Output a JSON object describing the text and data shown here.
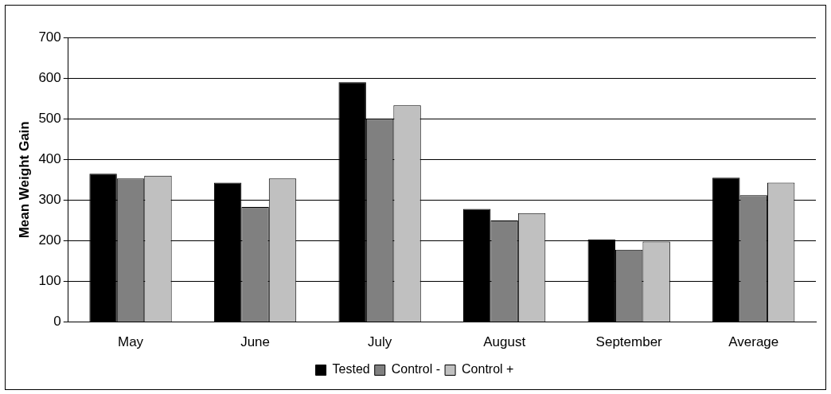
{
  "chart_data": {
    "type": "bar",
    "ylabel": "Mean Weight Gain",
    "categories": [
      "May",
      "June",
      "July",
      "August",
      "September",
      "Average"
    ],
    "series": [
      {
        "name": "Tested",
        "color": "#000000",
        "values": [
          365,
          343,
          590,
          278,
          203,
          355
        ]
      },
      {
        "name": "Control -",
        "color": "#808080",
        "values": [
          353,
          283,
          500,
          250,
          178,
          312
        ]
      },
      {
        "name": "Control +",
        "color": "#c0c0c0",
        "values": [
          360,
          353,
          533,
          268,
          198,
          343
        ]
      }
    ],
    "ylim": [
      0,
      700
    ],
    "yticks": [
      0,
      100,
      200,
      300,
      400,
      500,
      600,
      700
    ],
    "grid": "y",
    "legend": "bottom"
  }
}
